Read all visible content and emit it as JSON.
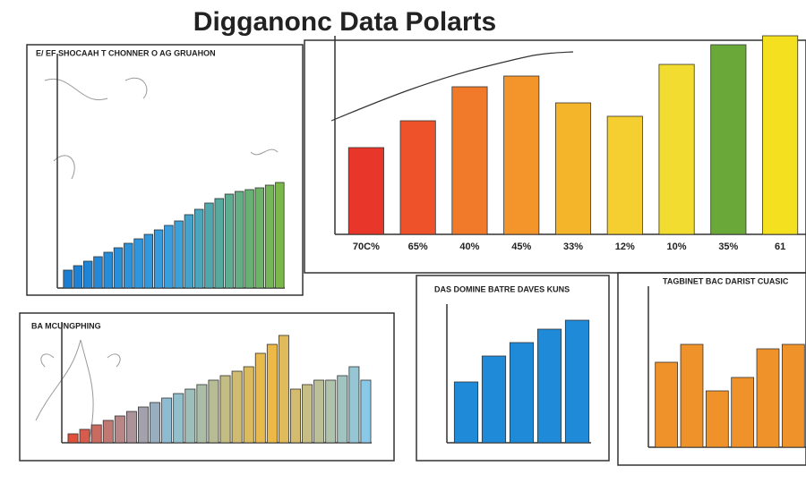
{
  "title": "Digganonc Data Polarts",
  "chart_data": [
    {
      "type": "bar",
      "title": "E/ EF SHOCAAH T CHONNER O AG GRUAHON",
      "categories": [
        null,
        null,
        null,
        null,
        null,
        null,
        null,
        null,
        null,
        null,
        null,
        null,
        null,
        null,
        null,
        null,
        null,
        null,
        null,
        null,
        null,
        null
      ],
      "values": [
        20,
        25,
        30,
        35,
        40,
        45,
        50,
        55,
        60,
        65,
        70,
        75,
        82,
        88,
        95,
        100,
        105,
        108,
        110,
        112,
        115,
        118
      ],
      "gradient": [
        "#1a7fd4",
        "#3aa0e0",
        "#7ab84a"
      ],
      "ylim": [
        0,
        262
      ]
    },
    {
      "type": "bar",
      "categories": [
        "70C%",
        "65%",
        "40%",
        "45%",
        "33%",
        "12%",
        "10%",
        "35%",
        "61"
      ],
      "values": [
        97,
        127,
        165,
        177,
        147,
        132,
        190,
        212,
        222
      ],
      "colors": [
        "#e8372a",
        "#ee522a",
        "#f07a2a",
        "#f3952a",
        "#f5b52a",
        "#f5cf30",
        "#f2dc30",
        "#6aa83a",
        "#f5e020"
      ],
      "ylim": [
        0,
        222
      ]
    },
    {
      "type": "bar",
      "title": "BA MCUNGPHING",
      "categories": [
        null,
        null,
        null,
        null,
        null,
        null,
        null,
        null,
        null,
        null,
        null,
        null,
        null,
        null,
        null,
        null,
        null,
        null,
        null,
        null,
        null,
        null,
        null,
        null,
        null,
        null
      ],
      "values": [
        10,
        15,
        20,
        25,
        30,
        35,
        40,
        45,
        50,
        55,
        60,
        65,
        70,
        75,
        80,
        85,
        100,
        110,
        120,
        60,
        65,
        70,
        70,
        75,
        85,
        70
      ],
      "gradient": [
        "#e0503a",
        "#8ac0d8",
        "#f0b840",
        "#8ac8e8"
      ],
      "ylim": [
        0,
        135
      ]
    },
    {
      "type": "bar",
      "title": "DAS DOMINE BATRE DAVES KUNS",
      "categories": [
        null,
        null,
        null,
        null,
        null
      ],
      "values": [
        68,
        97,
        112,
        127,
        137
      ],
      "color": "#1e8ad8",
      "ylim": [
        0,
        155
      ]
    },
    {
      "type": "bar",
      "title": "TAGBINET BAC DARIST CUASIC",
      "categories": [
        null,
        null,
        null,
        null,
        null,
        null
      ],
      "values": [
        95,
        115,
        63,
        78,
        110,
        115
      ],
      "color": "#f0922a",
      "ylim": [
        0,
        180
      ]
    }
  ]
}
